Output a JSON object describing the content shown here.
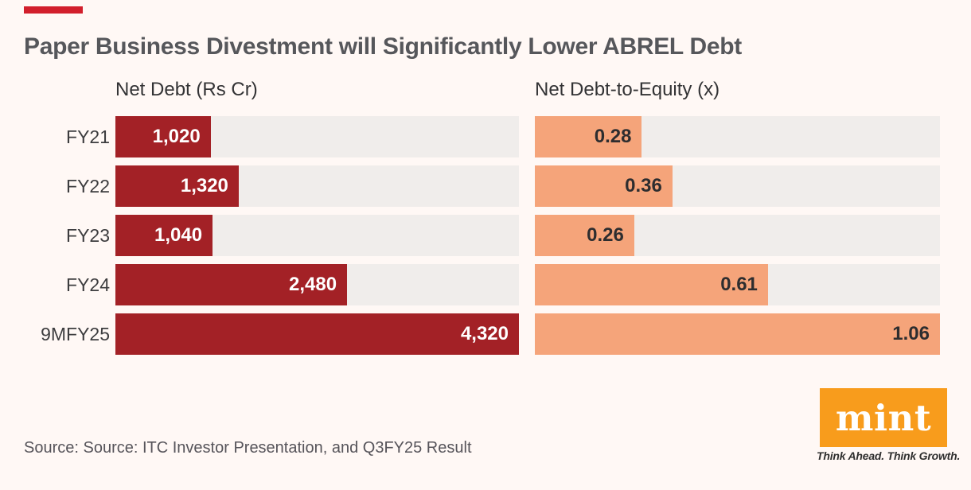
{
  "title": "Paper Business Divestment will Significantly Lower ABREL Debt",
  "accent_color": "#D21F2C",
  "background_color": "#FFF8F5",
  "track_color": "#F0EDEB",
  "source": {
    "text": "Source: Source: ITC Investor Presentation, and Q3FY25 Result"
  },
  "logo": {
    "text": "mint",
    "tagline": "Think Ahead. Think Growth.",
    "bg_color": "#F89C1C",
    "text_color": "#FFFFFF"
  },
  "chart_data": [
    {
      "type": "bar",
      "orientation": "horizontal",
      "slug": "net-debt",
      "title": "Net Debt (Rs Cr)",
      "categories": [
        "FY21",
        "FY22",
        "FY23",
        "FY24",
        "9MFY25"
      ],
      "values": [
        1020,
        1320,
        1040,
        2480,
        4320
      ],
      "labels": [
        "1,020",
        "1,320",
        "1,040",
        "2,480",
        "4,320"
      ],
      "xlim": [
        0,
        4320
      ],
      "grid": false,
      "legend": "none",
      "bar_color": "#A32126",
      "value_label_color": "#FFFFFF"
    },
    {
      "type": "bar",
      "orientation": "horizontal",
      "slug": "net-debt-to-equity",
      "title": "Net Debt-to-Equity (x)",
      "categories": [
        "FY21",
        "FY22",
        "FY23",
        "FY24",
        "9MFY25"
      ],
      "values": [
        0.28,
        0.36,
        0.26,
        0.61,
        1.06
      ],
      "labels": [
        "0.28",
        "0.36",
        "0.26",
        "0.61",
        "1.06"
      ],
      "xlim": [
        0,
        1.06
      ],
      "grid": false,
      "legend": "none",
      "bar_color": "#F5A47A",
      "value_label_color": "#2D2D2F"
    }
  ]
}
